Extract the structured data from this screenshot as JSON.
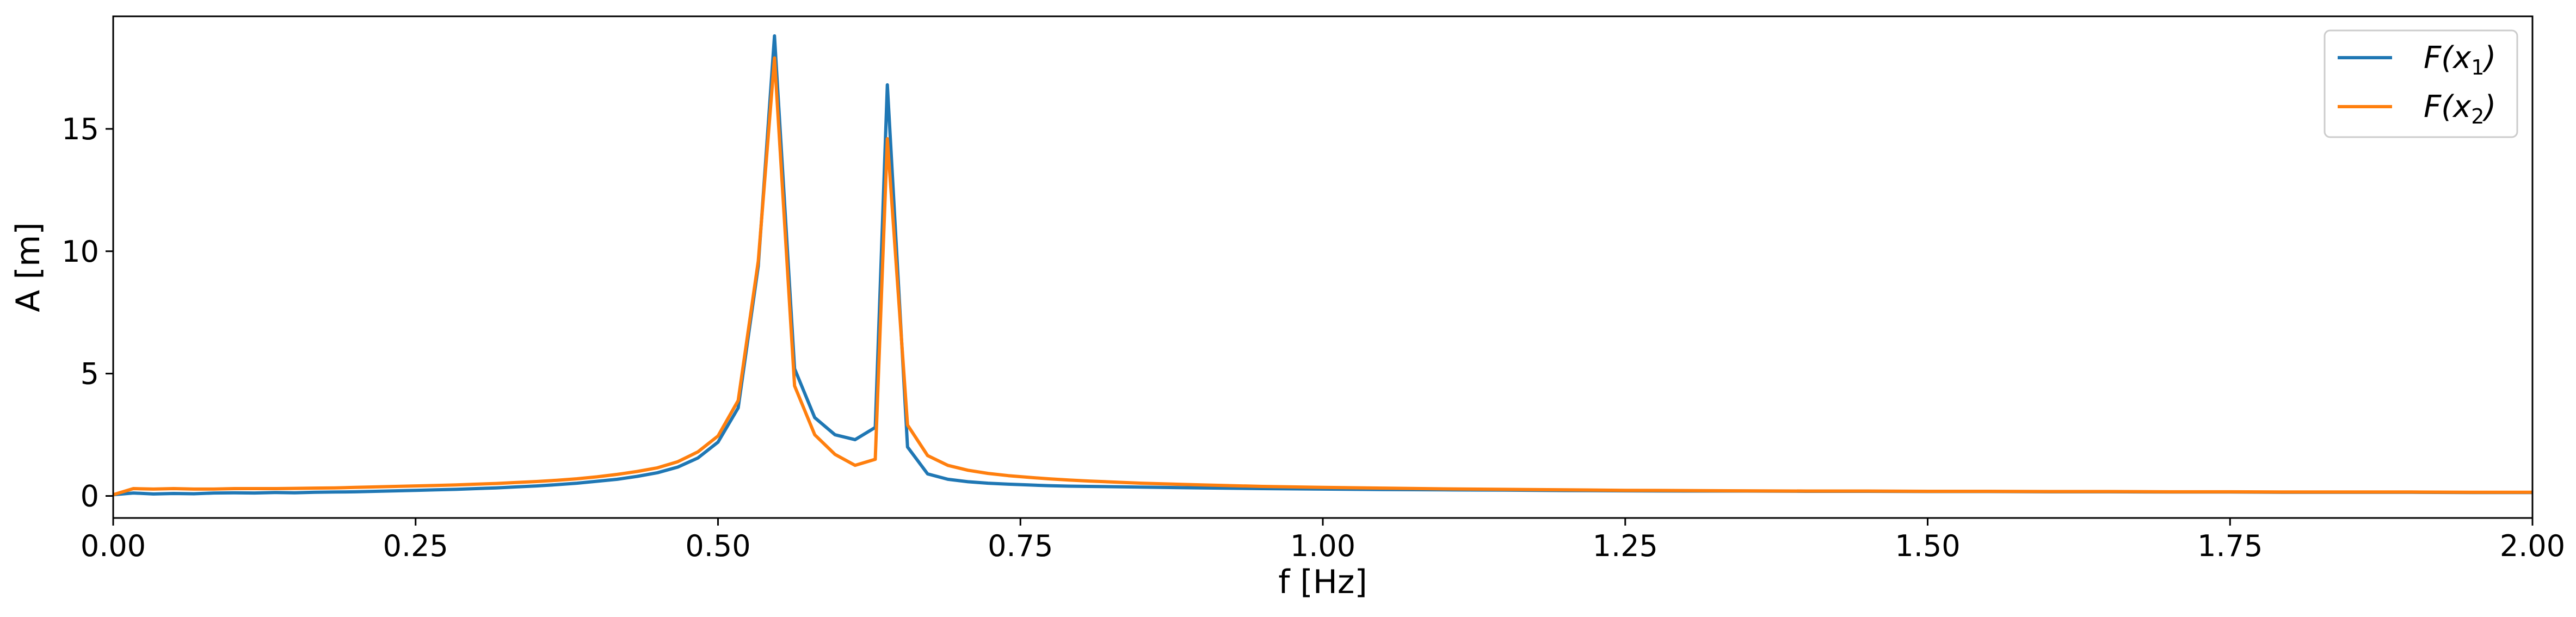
{
  "chart_data": {
    "type": "line",
    "title": "",
    "xlabel": "f [Hz]",
    "ylabel": "A [m]",
    "xlim": [
      0,
      2
    ],
    "ylim": [
      -0.9,
      19.6
    ],
    "xticks": [
      0,
      0.25,
      0.5,
      0.75,
      1.0,
      1.25,
      1.5,
      1.75,
      2.0
    ],
    "xtick_labels": [
      "0.00",
      "0.25",
      "0.50",
      "0.75",
      "1.00",
      "1.25",
      "1.50",
      "1.75",
      "2.00"
    ],
    "yticks": [
      0,
      5,
      10,
      15
    ],
    "ytick_labels": [
      "0",
      "5",
      "10",
      "15"
    ],
    "grid": false,
    "legend_position": "top-right",
    "series": [
      {
        "name": "F(x1)",
        "legend_main": "F(x",
        "legend_sub": "1",
        "legend_close": ")",
        "color": "#1f77b4",
        "x": [
          0.0,
          0.0167,
          0.0333,
          0.05,
          0.0667,
          0.0833,
          0.1,
          0.1167,
          0.1333,
          0.15,
          0.1667,
          0.1833,
          0.2,
          0.2167,
          0.2333,
          0.25,
          0.2667,
          0.2833,
          0.3,
          0.3167,
          0.3333,
          0.35,
          0.3667,
          0.3833,
          0.4,
          0.4167,
          0.4333,
          0.45,
          0.4667,
          0.4833,
          0.5,
          0.5167,
          0.5333,
          0.5467,
          0.5633,
          0.58,
          0.5967,
          0.6133,
          0.63,
          0.64,
          0.6567,
          0.6733,
          0.69,
          0.7067,
          0.7233,
          0.74,
          0.7567,
          0.7733,
          0.79,
          0.8067,
          0.85,
          0.9,
          0.95,
          1.0,
          1.05,
          1.1,
          1.15,
          1.2,
          1.25,
          1.3,
          1.35,
          1.4,
          1.45,
          1.5,
          1.55,
          1.6,
          1.65,
          1.7,
          1.75,
          1.8,
          1.85,
          1.9,
          1.95,
          2.0
        ],
        "y": [
          0.05,
          0.12,
          0.08,
          0.1,
          0.09,
          0.12,
          0.13,
          0.12,
          0.14,
          0.13,
          0.15,
          0.16,
          0.17,
          0.19,
          0.21,
          0.23,
          0.25,
          0.27,
          0.3,
          0.33,
          0.37,
          0.41,
          0.46,
          0.52,
          0.6,
          0.68,
          0.8,
          0.95,
          1.18,
          1.55,
          2.2,
          3.6,
          9.4,
          18.8,
          5.2,
          3.2,
          2.5,
          2.3,
          2.8,
          16.8,
          2.0,
          0.9,
          0.68,
          0.58,
          0.52,
          0.48,
          0.45,
          0.42,
          0.4,
          0.39,
          0.36,
          0.33,
          0.3,
          0.28,
          0.26,
          0.25,
          0.24,
          0.22,
          0.21,
          0.2,
          0.2,
          0.19,
          0.19,
          0.18,
          0.18,
          0.17,
          0.17,
          0.16,
          0.16,
          0.15,
          0.15,
          0.15,
          0.14,
          0.14
        ]
      },
      {
        "name": "F(x2)",
        "legend_main": "F(x",
        "legend_sub": "2",
        "legend_close": ")",
        "color": "#ff7f0e",
        "x": [
          0.0,
          0.0167,
          0.0333,
          0.05,
          0.0667,
          0.0833,
          0.1,
          0.1167,
          0.1333,
          0.15,
          0.1667,
          0.1833,
          0.2,
          0.2167,
          0.2333,
          0.25,
          0.2667,
          0.2833,
          0.3,
          0.3167,
          0.3333,
          0.35,
          0.3667,
          0.3833,
          0.4,
          0.4167,
          0.4333,
          0.45,
          0.4667,
          0.4833,
          0.5,
          0.5167,
          0.5333,
          0.5467,
          0.5633,
          0.58,
          0.5967,
          0.6133,
          0.63,
          0.64,
          0.6567,
          0.6733,
          0.69,
          0.7067,
          0.7233,
          0.74,
          0.7567,
          0.7733,
          0.79,
          0.8067,
          0.85,
          0.9,
          0.95,
          1.0,
          1.05,
          1.1,
          1.15,
          1.2,
          1.25,
          1.3,
          1.35,
          1.4,
          1.45,
          1.5,
          1.55,
          1.6,
          1.65,
          1.7,
          1.75,
          1.8,
          1.85,
          1.9,
          1.95,
          2.0
        ],
        "y": [
          0.05,
          0.3,
          0.28,
          0.3,
          0.28,
          0.28,
          0.3,
          0.3,
          0.3,
          0.31,
          0.32,
          0.33,
          0.35,
          0.37,
          0.39,
          0.41,
          0.43,
          0.45,
          0.48,
          0.51,
          0.55,
          0.59,
          0.64,
          0.7,
          0.78,
          0.88,
          1.0,
          1.15,
          1.4,
          1.8,
          2.45,
          3.9,
          9.6,
          17.9,
          4.5,
          2.5,
          1.7,
          1.25,
          1.5,
          14.6,
          2.9,
          1.65,
          1.25,
          1.05,
          0.92,
          0.83,
          0.76,
          0.7,
          0.65,
          0.61,
          0.52,
          0.45,
          0.39,
          0.35,
          0.32,
          0.29,
          0.27,
          0.25,
          0.23,
          0.22,
          0.21,
          0.2,
          0.2,
          0.19,
          0.19,
          0.18,
          0.18,
          0.17,
          0.17,
          0.16,
          0.16,
          0.16,
          0.15,
          0.15
        ]
      }
    ]
  }
}
